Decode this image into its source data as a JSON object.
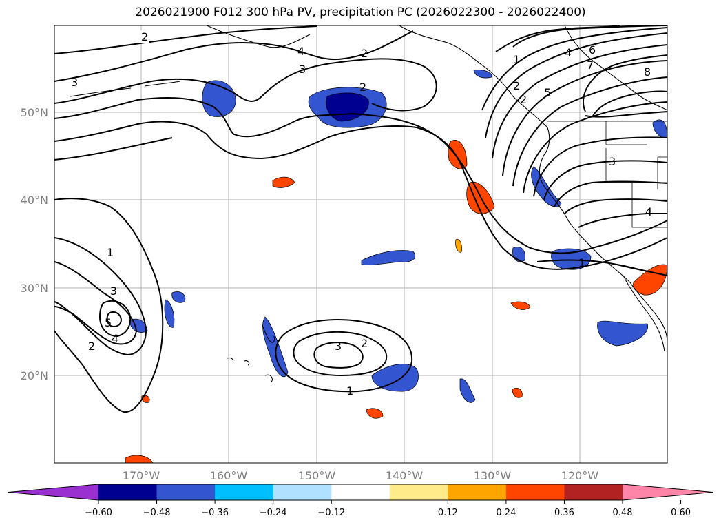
{
  "title": "2026021900 F012 300 hPa PV, precipitation PC (2026022300 - 2026022400)",
  "map": {
    "lat_labels": [
      "50°N",
      "40°N",
      "30°N",
      "20°N"
    ],
    "lon_labels": [
      "170°W",
      "160°W",
      "150°W",
      "140°W",
      "130°W",
      "120°W"
    ]
  },
  "contour_labels": [
    "2",
    "4",
    "3",
    "3",
    "2",
    "2",
    "1",
    "4",
    "6",
    "7",
    "2",
    "2",
    "5",
    "8",
    "3",
    "4",
    "1",
    "1",
    "3",
    "5",
    "4",
    "2",
    "3",
    "2",
    "1"
  ],
  "colorbar": {
    "ticks": [
      "−0.60",
      "−0.48",
      "−0.36",
      "−0.24",
      "−0.12",
      "0.12",
      "0.24",
      "0.36",
      "0.48",
      "0.60"
    ],
    "colors": [
      "#9b30d0",
      "#000090",
      "#3355d0",
      "#00bfff",
      "#b0e2ff",
      "#ffffff",
      "#ffeb8a",
      "#ffa500",
      "#ff4500",
      "#b22222",
      "#ff85a8"
    ]
  },
  "chart_data": {
    "type": "map",
    "title": "2026021900 F012 300 hPa PV, precipitation PC (2026022300 - 2026022400)",
    "lat_ticks": [
      50,
      40,
      30,
      20
    ],
    "lon_ticks": [
      -170,
      -160,
      -150,
      -140,
      -130,
      -120
    ],
    "colorbar_levels": [
      -0.6,
      -0.48,
      -0.36,
      -0.24,
      -0.12,
      0.12,
      0.24,
      0.36,
      0.48,
      0.6
    ],
    "pv_contour_levels": [
      1,
      2,
      3,
      4,
      5,
      6,
      7,
      8
    ]
  }
}
